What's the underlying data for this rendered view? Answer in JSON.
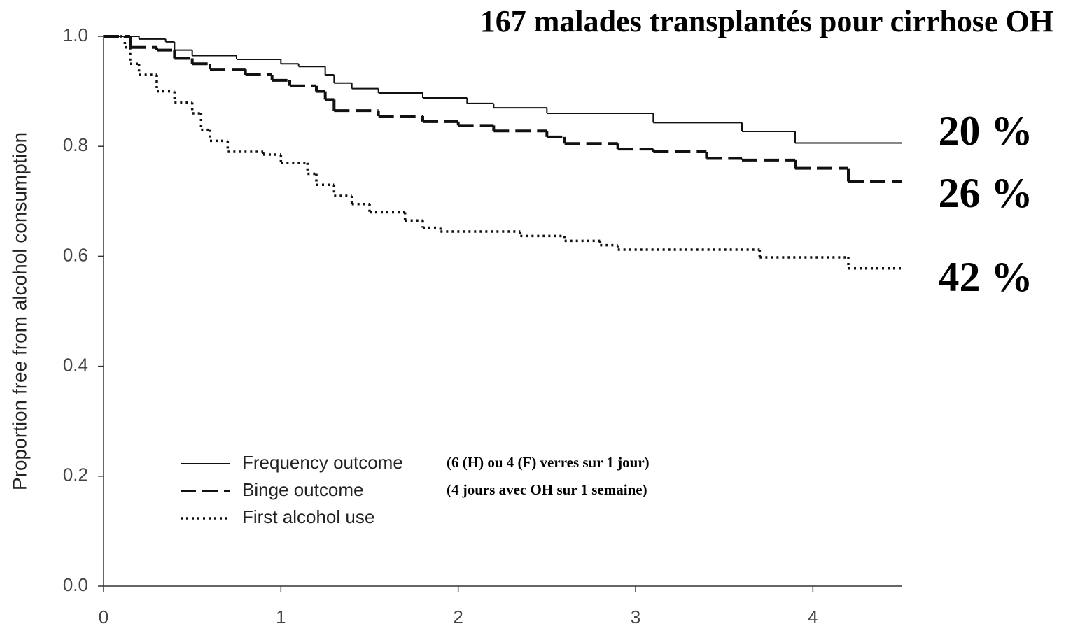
{
  "chart_data": {
    "type": "step",
    "title": "167 malades transplantés pour cirrhose OH",
    "y_label": "Proportion free from alcohol consumption",
    "xlim": [
      0,
      4.5
    ],
    "ylim": [
      0,
      1
    ],
    "xticks": [
      0,
      1,
      2,
      3,
      4
    ],
    "yticks": [
      {
        "value": 0,
        "label": "0.0"
      },
      0.2,
      0.4,
      0.6,
      0.8,
      {
        "value": 1,
        "label": "1.0"
      }
    ],
    "series": [
      {
        "name": "Frequency outcome",
        "color": "#111111",
        "line_style": "solid",
        "x": [
          0,
          0.2,
          0.35,
          0.4,
          0.5,
          0.75,
          1.0,
          1.1,
          1.25,
          1.3,
          1.4,
          1.55,
          1.8,
          2.05,
          2.2,
          2.5,
          3.1,
          3.6,
          3.9,
          4.5
        ],
        "values": [
          1.0,
          0.995,
          0.99,
          0.975,
          0.965,
          0.958,
          0.95,
          0.945,
          0.93,
          0.915,
          0.905,
          0.897,
          0.888,
          0.878,
          0.87,
          0.86,
          0.843,
          0.827,
          0.806,
          0.806
        ]
      },
      {
        "name": "Binge outcome",
        "color": "#111111",
        "line_style": "dashed",
        "x": [
          0,
          0.15,
          0.3,
          0.4,
          0.5,
          0.6,
          0.8,
          0.95,
          1.05,
          1.2,
          1.25,
          1.3,
          1.55,
          1.8,
          2.0,
          2.2,
          2.5,
          2.6,
          2.9,
          3.1,
          3.4,
          3.6,
          3.9,
          4.2,
          4.5
        ],
        "values": [
          1.0,
          0.98,
          0.975,
          0.96,
          0.95,
          0.94,
          0.93,
          0.92,
          0.91,
          0.9,
          0.885,
          0.865,
          0.855,
          0.845,
          0.838,
          0.828,
          0.817,
          0.805,
          0.795,
          0.79,
          0.778,
          0.775,
          0.76,
          0.736,
          0.736
        ]
      },
      {
        "name": "First alcohol use",
        "color": "#111111",
        "line_style": "dotted",
        "x": [
          0,
          0.12,
          0.15,
          0.2,
          0.3,
          0.4,
          0.5,
          0.55,
          0.6,
          0.7,
          0.9,
          1.0,
          1.15,
          1.2,
          1.3,
          1.4,
          1.5,
          1.7,
          1.8,
          1.9,
          2.35,
          2.6,
          2.8,
          2.9,
          3.7,
          4.2,
          4.5
        ],
        "values": [
          1.0,
          0.98,
          0.95,
          0.93,
          0.9,
          0.88,
          0.86,
          0.83,
          0.81,
          0.79,
          0.785,
          0.77,
          0.75,
          0.73,
          0.71,
          0.695,
          0.68,
          0.665,
          0.652,
          0.645,
          0.637,
          0.628,
          0.62,
          0.612,
          0.598,
          0.578,
          0.578
        ]
      }
    ],
    "legend_notes": [
      "(6 (H) ou 4 (F) verres sur 1 jour)",
      "(4 jours avec OH sur 1 semaine)"
    ],
    "annotations": [
      "20 %",
      "26 %",
      "42 %"
    ]
  }
}
